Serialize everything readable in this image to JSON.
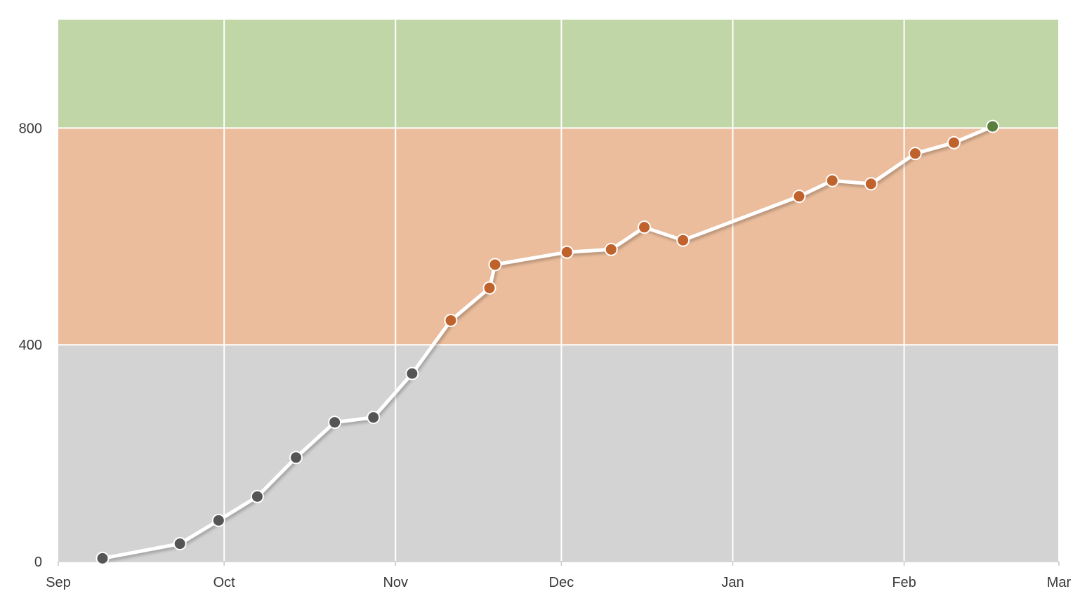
{
  "chart_data": {
    "type": "line",
    "title": "",
    "xlabel": "",
    "ylabel": "",
    "x_axis": {
      "type": "date",
      "range": [
        "2020-09-01",
        "2021-03-01"
      ],
      "ticks": [
        {
          "date": "2020-09-01",
          "label": "Sep"
        },
        {
          "date": "2020-10-01",
          "label": "Oct"
        },
        {
          "date": "2020-11-01",
          "label": "Nov"
        },
        {
          "date": "2020-12-01",
          "label": "Dec"
        },
        {
          "date": "2021-01-01",
          "label": "Jan"
        },
        {
          "date": "2021-02-01",
          "label": "Feb"
        },
        {
          "date": "2021-03-01",
          "label": "Mar"
        }
      ]
    },
    "y_axis": {
      "range": [
        0,
        1000
      ],
      "ticks": [
        {
          "value": 0,
          "label": "0"
        },
        {
          "value": 400,
          "label": "400"
        },
        {
          "value": 800,
          "label": "800"
        }
      ]
    },
    "grid": true,
    "bands": [
      {
        "from": 0,
        "to": 400,
        "color": "#d3d3d3"
      },
      {
        "from": 400,
        "to": 800,
        "color": "#ebbd9c"
      },
      {
        "from": 800,
        "to": 1000,
        "color": "#c0d6a6"
      }
    ],
    "line_color": "#ffffff",
    "point_colors": {
      "low": "#555555",
      "mid": "#c0622b",
      "high": "#5a7e3c"
    },
    "series": [
      {
        "points": [
          {
            "x": "2020-09-09",
            "y": 6
          },
          {
            "x": "2020-09-23",
            "y": 33
          },
          {
            "x": "2020-09-30",
            "y": 76
          },
          {
            "x": "2020-10-07",
            "y": 120
          },
          {
            "x": "2020-10-14",
            "y": 192
          },
          {
            "x": "2020-10-21",
            "y": 257
          },
          {
            "x": "2020-10-28",
            "y": 266
          },
          {
            "x": "2020-11-04",
            "y": 347
          },
          {
            "x": "2020-11-11",
            "y": 445
          },
          {
            "x": "2020-11-18",
            "y": 505
          },
          {
            "x": "2020-11-19",
            "y": 548
          },
          {
            "x": "2020-12-02",
            "y": 571
          },
          {
            "x": "2020-12-10",
            "y": 576
          },
          {
            "x": "2020-12-16",
            "y": 617
          },
          {
            "x": "2020-12-23",
            "y": 593
          },
          {
            "x": "2021-01-13",
            "y": 674
          },
          {
            "x": "2021-01-19",
            "y": 703
          },
          {
            "x": "2021-01-26",
            "y": 697
          },
          {
            "x": "2021-02-03",
            "y": 753
          },
          {
            "x": "2021-02-10",
            "y": 773
          },
          {
            "x": "2021-02-17",
            "y": 803
          }
        ]
      }
    ]
  }
}
